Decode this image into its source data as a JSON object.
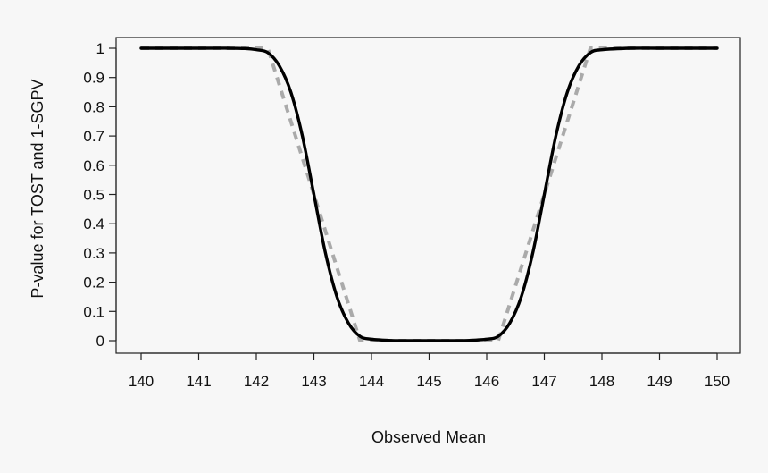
{
  "chart_data": {
    "type": "line",
    "title": "",
    "xlabel": "Observed Mean",
    "ylabel": "P-value for TOST and 1-SGPV",
    "xlim": [
      140,
      150
    ],
    "ylim": [
      0,
      1
    ],
    "x_ticks": [
      "140",
      "141",
      "142",
      "143",
      "144",
      "145",
      "146",
      "147",
      "148",
      "149",
      "150"
    ],
    "y_ticks": [
      "0",
      "0.1",
      "0.2",
      "0.3",
      "0.4",
      "0.5",
      "0.6",
      "0.7",
      "0.8",
      "0.9",
      "1"
    ],
    "grid": false,
    "legend": "none",
    "series": [
      {
        "style": "solid",
        "color": "#000000",
        "x": [
          140,
          141,
          141.5,
          141.8,
          142,
          142.2,
          142.4,
          142.6,
          142.8,
          143,
          143.2,
          143.4,
          143.6,
          143.8,
          144,
          144.3,
          144.6,
          145,
          145.4,
          145.7,
          146,
          146.2,
          146.4,
          146.6,
          146.8,
          147,
          147.2,
          147.4,
          147.6,
          147.8,
          148,
          148.5,
          149,
          150
        ],
        "y": [
          1,
          1,
          1,
          0.999,
          0.995,
          0.985,
          0.94,
          0.85,
          0.7,
          0.5,
          0.3,
          0.15,
          0.06,
          0.015,
          0.005,
          0.001,
          0,
          0,
          0,
          0.001,
          0.005,
          0.015,
          0.06,
          0.15,
          0.3,
          0.5,
          0.7,
          0.85,
          0.94,
          0.985,
          0.995,
          1,
          1,
          1
        ]
      },
      {
        "style": "dashed",
        "color": "#aaaaaa",
        "x": [
          140,
          142.2,
          143.8,
          146.2,
          147.8,
          150
        ],
        "y": [
          1,
          1,
          0,
          0,
          1,
          1
        ]
      }
    ]
  }
}
